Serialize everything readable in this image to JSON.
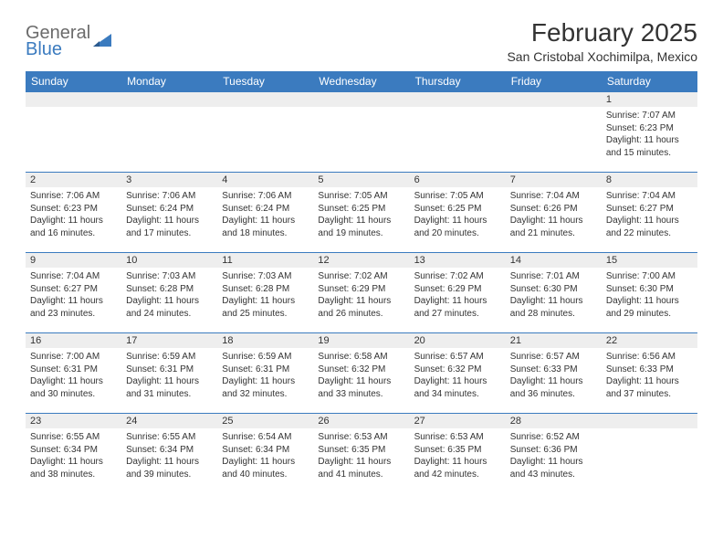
{
  "logo": {
    "line1": "General",
    "line2": "Blue"
  },
  "title": "February 2025",
  "location": "San Cristobal Xochimilpa, Mexico",
  "colors": {
    "header_bg": "#3b7bbf",
    "header_text": "#ffffff",
    "daynum_bg": "#eeeeee",
    "border": "#3b7bbf",
    "text": "#333333",
    "logo_gray": "#6b6b6b",
    "logo_blue": "#3b7bbf"
  },
  "day_headers": [
    "Sunday",
    "Monday",
    "Tuesday",
    "Wednesday",
    "Thursday",
    "Friday",
    "Saturday"
  ],
  "weeks": [
    [
      null,
      null,
      null,
      null,
      null,
      null,
      {
        "n": "1",
        "sr": "Sunrise: 7:07 AM",
        "ss": "Sunset: 6:23 PM",
        "dl": "Daylight: 11 hours and 15 minutes."
      }
    ],
    [
      {
        "n": "2",
        "sr": "Sunrise: 7:06 AM",
        "ss": "Sunset: 6:23 PM",
        "dl": "Daylight: 11 hours and 16 minutes."
      },
      {
        "n": "3",
        "sr": "Sunrise: 7:06 AM",
        "ss": "Sunset: 6:24 PM",
        "dl": "Daylight: 11 hours and 17 minutes."
      },
      {
        "n": "4",
        "sr": "Sunrise: 7:06 AM",
        "ss": "Sunset: 6:24 PM",
        "dl": "Daylight: 11 hours and 18 minutes."
      },
      {
        "n": "5",
        "sr": "Sunrise: 7:05 AM",
        "ss": "Sunset: 6:25 PM",
        "dl": "Daylight: 11 hours and 19 minutes."
      },
      {
        "n": "6",
        "sr": "Sunrise: 7:05 AM",
        "ss": "Sunset: 6:25 PM",
        "dl": "Daylight: 11 hours and 20 minutes."
      },
      {
        "n": "7",
        "sr": "Sunrise: 7:04 AM",
        "ss": "Sunset: 6:26 PM",
        "dl": "Daylight: 11 hours and 21 minutes."
      },
      {
        "n": "8",
        "sr": "Sunrise: 7:04 AM",
        "ss": "Sunset: 6:27 PM",
        "dl": "Daylight: 11 hours and 22 minutes."
      }
    ],
    [
      {
        "n": "9",
        "sr": "Sunrise: 7:04 AM",
        "ss": "Sunset: 6:27 PM",
        "dl": "Daylight: 11 hours and 23 minutes."
      },
      {
        "n": "10",
        "sr": "Sunrise: 7:03 AM",
        "ss": "Sunset: 6:28 PM",
        "dl": "Daylight: 11 hours and 24 minutes."
      },
      {
        "n": "11",
        "sr": "Sunrise: 7:03 AM",
        "ss": "Sunset: 6:28 PM",
        "dl": "Daylight: 11 hours and 25 minutes."
      },
      {
        "n": "12",
        "sr": "Sunrise: 7:02 AM",
        "ss": "Sunset: 6:29 PM",
        "dl": "Daylight: 11 hours and 26 minutes."
      },
      {
        "n": "13",
        "sr": "Sunrise: 7:02 AM",
        "ss": "Sunset: 6:29 PM",
        "dl": "Daylight: 11 hours and 27 minutes."
      },
      {
        "n": "14",
        "sr": "Sunrise: 7:01 AM",
        "ss": "Sunset: 6:30 PM",
        "dl": "Daylight: 11 hours and 28 minutes."
      },
      {
        "n": "15",
        "sr": "Sunrise: 7:00 AM",
        "ss": "Sunset: 6:30 PM",
        "dl": "Daylight: 11 hours and 29 minutes."
      }
    ],
    [
      {
        "n": "16",
        "sr": "Sunrise: 7:00 AM",
        "ss": "Sunset: 6:31 PM",
        "dl": "Daylight: 11 hours and 30 minutes."
      },
      {
        "n": "17",
        "sr": "Sunrise: 6:59 AM",
        "ss": "Sunset: 6:31 PM",
        "dl": "Daylight: 11 hours and 31 minutes."
      },
      {
        "n": "18",
        "sr": "Sunrise: 6:59 AM",
        "ss": "Sunset: 6:31 PM",
        "dl": "Daylight: 11 hours and 32 minutes."
      },
      {
        "n": "19",
        "sr": "Sunrise: 6:58 AM",
        "ss": "Sunset: 6:32 PM",
        "dl": "Daylight: 11 hours and 33 minutes."
      },
      {
        "n": "20",
        "sr": "Sunrise: 6:57 AM",
        "ss": "Sunset: 6:32 PM",
        "dl": "Daylight: 11 hours and 34 minutes."
      },
      {
        "n": "21",
        "sr": "Sunrise: 6:57 AM",
        "ss": "Sunset: 6:33 PM",
        "dl": "Daylight: 11 hours and 36 minutes."
      },
      {
        "n": "22",
        "sr": "Sunrise: 6:56 AM",
        "ss": "Sunset: 6:33 PM",
        "dl": "Daylight: 11 hours and 37 minutes."
      }
    ],
    [
      {
        "n": "23",
        "sr": "Sunrise: 6:55 AM",
        "ss": "Sunset: 6:34 PM",
        "dl": "Daylight: 11 hours and 38 minutes."
      },
      {
        "n": "24",
        "sr": "Sunrise: 6:55 AM",
        "ss": "Sunset: 6:34 PM",
        "dl": "Daylight: 11 hours and 39 minutes."
      },
      {
        "n": "25",
        "sr": "Sunrise: 6:54 AM",
        "ss": "Sunset: 6:34 PM",
        "dl": "Daylight: 11 hours and 40 minutes."
      },
      {
        "n": "26",
        "sr": "Sunrise: 6:53 AM",
        "ss": "Sunset: 6:35 PM",
        "dl": "Daylight: 11 hours and 41 minutes."
      },
      {
        "n": "27",
        "sr": "Sunrise: 6:53 AM",
        "ss": "Sunset: 6:35 PM",
        "dl": "Daylight: 11 hours and 42 minutes."
      },
      {
        "n": "28",
        "sr": "Sunrise: 6:52 AM",
        "ss": "Sunset: 6:36 PM",
        "dl": "Daylight: 11 hours and 43 minutes."
      },
      null
    ]
  ]
}
